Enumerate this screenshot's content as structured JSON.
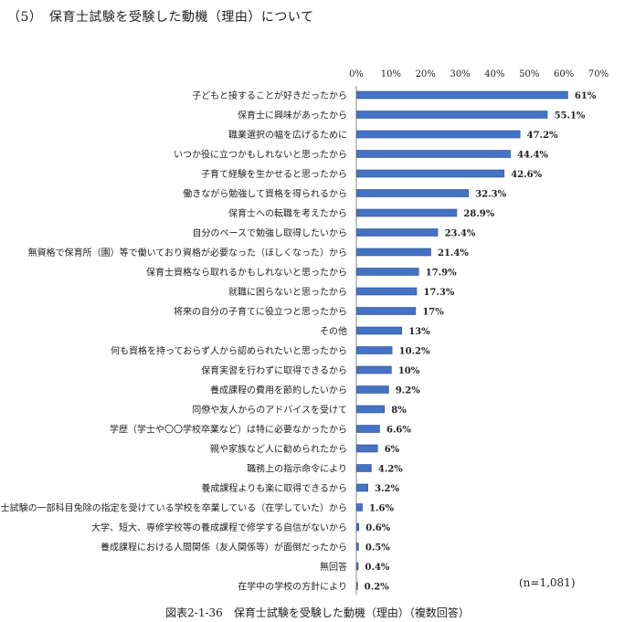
{
  "heading": "（5）　保育士試験を受験した動機（理由）について",
  "note": "(n=1,081)",
  "caption": "図表2-1-36　保育士試験を受験した動機（理由）（複数回答）",
  "colors": {
    "bar": "#4472C4",
    "bar_edge": "#2F528F",
    "axis": "#888888"
  },
  "chart_data": {
    "type": "bar",
    "orientation": "horizontal",
    "xlim": [
      0,
      70
    ],
    "xticks": [
      "0%",
      "10%",
      "20%",
      "30%",
      "40%",
      "50%",
      "60%",
      "70%"
    ],
    "xtick_values": [
      0,
      10,
      20,
      30,
      40,
      50,
      60,
      70
    ],
    "grid": false,
    "categories": [
      "子どもと接することが好きだったから",
      "保育士に興味があったから",
      "職業選択の幅を広げるために",
      "いつか役に立つかもしれないと思ったから",
      "子育て経験を生かせると思ったから",
      "働きながら勉強して資格を得られるから",
      "保育士への転職を考えたから",
      "自分のペースで勉強し取得したいから",
      "無資格で保育所（園）等で働いており資格が必要なった（ほしくなった）から",
      "保育士資格なら取れるかもしれないと思ったから",
      "就職に困らないと思ったから",
      "将来の自分の子育てに役立つと思ったから",
      "その他",
      "何も資格を持っておらず人から認められたいと思ったから",
      "保育実習を行わずに取得できるから",
      "養成課程の費用を節約したいから",
      "同僚や友人からのアドバイスを受けて",
      "学歴（学士や〇〇学校卒業など）は特に必要なかったから",
      "親や家族など人に勧められたから",
      "職務上の指示命令により",
      "養成課程よりも楽に取得できるから",
      "保育士試験の一部科目免除の指定を受けている学校を卒業している（在学していた）から",
      "大学、短大、専修学校等の養成課程で修学する自信がないから",
      "養成課程における人間関係（友人関係等）が面倒だったから",
      "無回答",
      "在学中の学校の方針により"
    ],
    "values": [
      61,
      55.1,
      47.2,
      44.4,
      42.6,
      32.3,
      28.9,
      23.4,
      21.4,
      17.9,
      17.3,
      17,
      13,
      10.2,
      10,
      9.2,
      8,
      6.6,
      6,
      4.2,
      3.2,
      1.6,
      0.6,
      0.5,
      0.4,
      0.2
    ],
    "labels": [
      "61%",
      "55.1%",
      "47.2%",
      "44.4%",
      "42.6%",
      "32.3%",
      "28.9%",
      "23.4%",
      "21.4%",
      "17.9%",
      "17.3%",
      "17%",
      "13%",
      "10.2%",
      "10%",
      "9.2%",
      "8%",
      "6.6%",
      "6%",
      "4.2%",
      "3.2%",
      "1.6%",
      "0.6%",
      "0.5%",
      "0.4%",
      "0.2%"
    ]
  }
}
